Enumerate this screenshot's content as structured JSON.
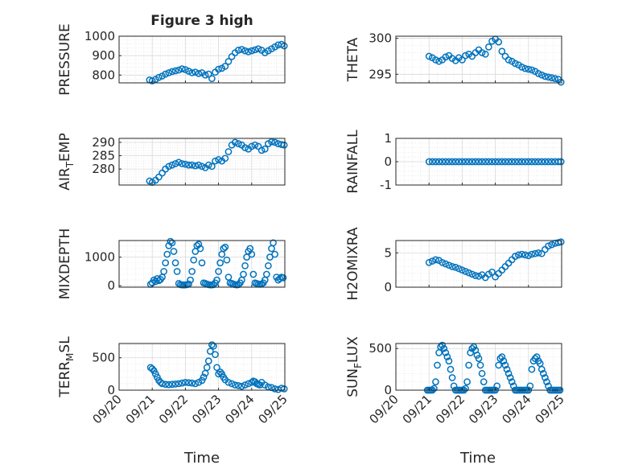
{
  "figure": {
    "title": "Figure 3 high"
  },
  "chart_data": [
    {
      "type": "scatter",
      "ylabel": "PRESSURE",
      "ylim": [
        760,
        1000
      ],
      "yticks": [
        800,
        900,
        1000
      ],
      "xlim": [
        0,
        5
      ],
      "xtick_labels": [
        "09/20",
        "09/21",
        "09/22",
        "09/23",
        "09/24",
        "09/25"
      ],
      "xlabel": "",
      "grid": true,
      "marker_color": "#0072BD",
      "x": [
        0.92,
        1.0,
        1.1,
        1.2,
        1.3,
        1.4,
        1.5,
        1.6,
        1.7,
        1.8,
        1.9,
        2.0,
        2.1,
        2.2,
        2.3,
        2.4,
        2.5,
        2.6,
        2.7,
        2.8,
        2.9,
        3.0,
        3.1,
        3.2,
        3.3,
        3.4,
        3.5,
        3.6,
        3.7,
        3.8,
        3.9,
        4.0,
        4.1,
        4.2,
        4.3,
        4.4,
        4.5,
        4.6,
        4.7,
        4.8,
        4.9,
        4.98
      ],
      "y": [
        775,
        770,
        778,
        788,
        795,
        805,
        812,
        818,
        822,
        826,
        832,
        828,
        820,
        812,
        815,
        808,
        812,
        800,
        805,
        782,
        815,
        830,
        835,
        845,
        870,
        895,
        915,
        928,
        932,
        925,
        920,
        925,
        930,
        935,
        928,
        915,
        925,
        935,
        945,
        955,
        958,
        950
      ]
    },
    {
      "type": "scatter",
      "ylabel": "THETA",
      "ylim": [
        293.8,
        300.3
      ],
      "yticks": [
        295,
        300
      ],
      "xlim": [
        0,
        5
      ],
      "xtick_labels": [
        "09/20",
        "09/21",
        "09/22",
        "09/23",
        "09/24",
        "09/25"
      ],
      "xlabel": "",
      "grid": true,
      "marker_color": "#0072BD",
      "x": [
        1.0,
        1.1,
        1.2,
        1.3,
        1.4,
        1.5,
        1.6,
        1.7,
        1.8,
        1.9,
        2.0,
        2.1,
        2.2,
        2.3,
        2.4,
        2.5,
        2.6,
        2.7,
        2.8,
        2.9,
        3.0,
        3.1,
        3.2,
        3.3,
        3.4,
        3.5,
        3.6,
        3.7,
        3.8,
        3.9,
        4.0,
        4.1,
        4.2,
        4.3,
        4.4,
        4.5,
        4.6,
        4.7,
        4.8,
        4.9,
        4.98
      ],
      "y": [
        297.5,
        297.3,
        297.0,
        296.8,
        297.0,
        297.4,
        297.6,
        297.2,
        296.9,
        297.3,
        297.0,
        297.6,
        297.8,
        297.5,
        298.0,
        298.4,
        298.0,
        297.8,
        298.8,
        299.6,
        299.9,
        299.5,
        298.2,
        297.5,
        297.0,
        296.8,
        296.5,
        296.3,
        296.0,
        295.8,
        295.7,
        295.6,
        295.4,
        295.1,
        294.9,
        294.7,
        294.6,
        294.5,
        294.4,
        294.3,
        293.9
      ]
    },
    {
      "type": "scatter",
      "ylabel": "AIR_TEMP",
      "ylim": [
        274,
        291.5
      ],
      "yticks": [
        280,
        285,
        290
      ],
      "xlim": [
        0,
        5
      ],
      "xtick_labels": [
        "09/20",
        "09/21",
        "09/22",
        "09/23",
        "09/24",
        "09/25"
      ],
      "xlabel": "",
      "grid": true,
      "marker_color": "#0072BD",
      "x": [
        0.92,
        1.0,
        1.1,
        1.2,
        1.3,
        1.4,
        1.5,
        1.6,
        1.7,
        1.8,
        1.9,
        2.0,
        2.1,
        2.2,
        2.3,
        2.4,
        2.5,
        2.6,
        2.7,
        2.8,
        2.9,
        3.0,
        3.1,
        3.2,
        3.3,
        3.4,
        3.5,
        3.6,
        3.7,
        3.8,
        3.9,
        4.0,
        4.1,
        4.2,
        4.3,
        4.4,
        4.5,
        4.6,
        4.7,
        4.8,
        4.9,
        4.98
      ],
      "y": [
        275.5,
        275.0,
        275.8,
        277.0,
        278.5,
        280.0,
        281.0,
        281.5,
        282.0,
        282.5,
        282.0,
        281.8,
        281.5,
        281.5,
        281.2,
        281.5,
        281.0,
        280.5,
        281.5,
        281.0,
        283.0,
        283.5,
        283.0,
        284.0,
        286.5,
        289.0,
        290.0,
        289.5,
        289.0,
        288.0,
        287.5,
        288.5,
        289.0,
        288.5,
        287.0,
        287.5,
        289.5,
        290.2,
        290.0,
        289.5,
        289.2,
        289.0
      ]
    },
    {
      "type": "scatter",
      "ylabel": "RAINFALL",
      "ylim": [
        -1,
        1
      ],
      "yticks": [
        -1,
        0,
        1
      ],
      "xlim": [
        0,
        5
      ],
      "xtick_labels": [
        "09/20",
        "09/21",
        "09/22",
        "09/23",
        "09/24",
        "09/25"
      ],
      "xlabel": "",
      "grid": true,
      "marker_color": "#0072BD",
      "x": [
        1.0,
        1.1,
        1.2,
        1.3,
        1.4,
        1.5,
        1.6,
        1.7,
        1.8,
        1.9,
        2.0,
        2.1,
        2.2,
        2.3,
        2.4,
        2.5,
        2.6,
        2.7,
        2.8,
        2.9,
        3.0,
        3.1,
        3.2,
        3.3,
        3.4,
        3.5,
        3.6,
        3.7,
        3.8,
        3.9,
        4.0,
        4.1,
        4.2,
        4.3,
        4.4,
        4.5,
        4.6,
        4.7,
        4.8,
        4.9,
        4.98
      ],
      "y": [
        0,
        0,
        0,
        0,
        0,
        0,
        0,
        0,
        0,
        0,
        0,
        0,
        0,
        0,
        0,
        0,
        0,
        0,
        0,
        0,
        0,
        0,
        0,
        0,
        0,
        0,
        0,
        0,
        0,
        0,
        0,
        0,
        0,
        0,
        0,
        0,
        0,
        0,
        0,
        0,
        0
      ]
    },
    {
      "type": "scatter",
      "ylabel": "MIXDEPTH",
      "ylim": [
        -50,
        1580
      ],
      "yticks": [
        0,
        1000
      ],
      "xlim": [
        0,
        5
      ],
      "xtick_labels": [
        "09/20",
        "09/21",
        "09/22",
        "09/23",
        "09/24",
        "09/25"
      ],
      "xlabel": "",
      "grid": true,
      "marker_color": "#0072BD",
      "x": [
        0.95,
        1.0,
        1.05,
        1.1,
        1.15,
        1.2,
        1.25,
        1.3,
        1.35,
        1.4,
        1.45,
        1.5,
        1.55,
        1.6,
        1.65,
        1.7,
        1.75,
        1.8,
        1.85,
        1.9,
        1.95,
        2.0,
        2.05,
        2.1,
        2.15,
        2.2,
        2.25,
        2.3,
        2.35,
        2.4,
        2.45,
        2.5,
        2.55,
        2.6,
        2.65,
        2.7,
        2.75,
        2.8,
        2.85,
        2.9,
        2.95,
        3.0,
        3.05,
        3.1,
        3.15,
        3.2,
        3.25,
        3.3,
        3.35,
        3.4,
        3.45,
        3.5,
        3.55,
        3.6,
        3.65,
        3.7,
        3.75,
        3.8,
        3.85,
        3.9,
        3.95,
        4.0,
        4.05,
        4.1,
        4.15,
        4.2,
        4.25,
        4.3,
        4.35,
        4.4,
        4.45,
        4.5,
        4.55,
        4.6,
        4.65,
        4.7,
        4.75,
        4.8,
        4.85,
        4.9,
        4.95
      ],
      "y": [
        50,
        100,
        200,
        150,
        250,
        180,
        220,
        300,
        500,
        800,
        1100,
        1400,
        1550,
        1500,
        1200,
        800,
        500,
        80,
        40,
        30,
        30,
        30,
        40,
        60,
        200,
        500,
        900,
        1200,
        1400,
        1450,
        1300,
        800,
        100,
        80,
        60,
        40,
        30,
        30,
        40,
        100,
        200,
        500,
        800,
        1100,
        1300,
        1350,
        900,
        300,
        100,
        80,
        60,
        40,
        30,
        40,
        100,
        200,
        400,
        700,
        1000,
        1200,
        1300,
        1100,
        400,
        100,
        80,
        60,
        50,
        60,
        100,
        200,
        400,
        700,
        1000,
        1300,
        1500,
        1100,
        300,
        200,
        250,
        300,
        280
      ]
    },
    {
      "type": "scatter",
      "ylabel": "H2OMIXRA",
      "ylim": [
        0,
        6.8
      ],
      "yticks": [
        0,
        5
      ],
      "xlim": [
        0,
        5
      ],
      "xtick_labels": [
        "09/20",
        "09/21",
        "09/22",
        "09/23",
        "09/24",
        "09/25"
      ],
      "xlabel": "",
      "grid": true,
      "marker_color": "#0072BD",
      "x": [
        1.0,
        1.1,
        1.2,
        1.3,
        1.4,
        1.5,
        1.6,
        1.7,
        1.8,
        1.9,
        2.0,
        2.1,
        2.2,
        2.3,
        2.4,
        2.5,
        2.6,
        2.7,
        2.8,
        2.9,
        3.0,
        3.1,
        3.2,
        3.3,
        3.4,
        3.5,
        3.6,
        3.7,
        3.8,
        3.9,
        4.0,
        4.1,
        4.2,
        4.3,
        4.4,
        4.5,
        4.6,
        4.7,
        4.8,
        4.9,
        4.98
      ],
      "y": [
        3.6,
        3.8,
        4.0,
        3.9,
        3.6,
        3.4,
        3.2,
        3.0,
        2.9,
        2.7,
        2.5,
        2.3,
        2.1,
        1.9,
        1.7,
        1.6,
        1.8,
        1.4,
        1.9,
        2.2,
        1.5,
        2.0,
        2.5,
        3.0,
        3.5,
        4.0,
        4.5,
        4.7,
        4.8,
        4.7,
        4.6,
        4.8,
        4.9,
        5.0,
        4.9,
        5.5,
        6.0,
        6.2,
        6.4,
        6.5,
        6.6
      ]
    },
    {
      "type": "scatter",
      "ylabel": "TERR_MSL",
      "ylim": [
        0,
        720
      ],
      "yticks": [
        0,
        500
      ],
      "xlim": [
        0,
        5
      ],
      "xtick_labels": [
        "09/20",
        "09/21",
        "09/22",
        "09/23",
        "09/24",
        "09/25"
      ],
      "xlabel": "",
      "grid": true,
      "marker_color": "#0072BD",
      "x": [
        0.95,
        1.0,
        1.05,
        1.1,
        1.15,
        1.2,
        1.25,
        1.3,
        1.4,
        1.5,
        1.6,
        1.7,
        1.8,
        1.9,
        2.0,
        2.1,
        2.2,
        2.3,
        2.4,
        2.5,
        2.55,
        2.6,
        2.65,
        2.7,
        2.75,
        2.8,
        2.85,
        2.9,
        2.95,
        3.0,
        3.05,
        3.1,
        3.15,
        3.2,
        3.3,
        3.4,
        3.5,
        3.6,
        3.7,
        3.8,
        3.9,
        4.0,
        4.05,
        4.1,
        4.15,
        4.2,
        4.25,
        4.3,
        4.4,
        4.5,
        4.6,
        4.7,
        4.8,
        4.9,
        4.98
      ],
      "y": [
        350,
        330,
        300,
        250,
        200,
        150,
        120,
        100,
        90,
        85,
        90,
        95,
        100,
        110,
        120,
        115,
        110,
        100,
        120,
        150,
        200,
        260,
        350,
        450,
        600,
        700,
        680,
        550,
        350,
        250,
        280,
        250,
        200,
        160,
        120,
        100,
        80,
        70,
        60,
        80,
        100,
        120,
        140,
        130,
        100,
        90,
        80,
        120,
        80,
        50,
        40,
        20,
        10,
        30,
        20
      ]
    },
    {
      "type": "scatter",
      "ylabel": "SUN_FLUX",
      "ylim": [
        0,
        560
      ],
      "yticks": [
        0,
        500
      ],
      "xlim": [
        0,
        5
      ],
      "xtick_labels": [
        "09/20",
        "09/21",
        "09/22",
        "09/23",
        "09/24",
        "09/25"
      ],
      "xlabel": "",
      "grid": true,
      "marker_color": "#0072BD",
      "x": [
        0.95,
        1.0,
        1.05,
        1.1,
        1.15,
        1.2,
        1.25,
        1.3,
        1.35,
        1.4,
        1.45,
        1.5,
        1.55,
        1.6,
        1.65,
        1.7,
        1.75,
        1.8,
        1.85,
        1.9,
        1.95,
        2.0,
        2.05,
        2.1,
        2.15,
        2.2,
        2.25,
        2.3,
        2.35,
        2.4,
        2.45,
        2.5,
        2.55,
        2.6,
        2.65,
        2.7,
        2.75,
        2.8,
        2.85,
        2.9,
        2.95,
        3.0,
        3.05,
        3.1,
        3.15,
        3.2,
        3.25,
        3.3,
        3.35,
        3.4,
        3.45,
        3.5,
        3.55,
        3.6,
        3.65,
        3.7,
        3.75,
        3.8,
        3.85,
        3.9,
        3.95,
        4.0,
        4.05,
        4.1,
        4.15,
        4.2,
        4.25,
        4.3,
        4.35,
        4.4,
        4.45,
        4.5,
        4.55,
        4.6,
        4.65,
        4.7,
        4.75,
        4.8,
        4.85,
        4.9,
        4.95
      ],
      "y": [
        0,
        0,
        0,
        0,
        20,
        100,
        300,
        450,
        520,
        540,
        500,
        450,
        400,
        350,
        250,
        150,
        50,
        0,
        0,
        0,
        0,
        0,
        0,
        20,
        100,
        300,
        450,
        500,
        520,
        480,
        420,
        380,
        300,
        200,
        100,
        0,
        0,
        0,
        0,
        0,
        0,
        0,
        50,
        300,
        380,
        400,
        350,
        300,
        250,
        200,
        150,
        100,
        50,
        0,
        0,
        0,
        0,
        0,
        0,
        0,
        0,
        0,
        50,
        250,
        350,
        380,
        400,
        350,
        320,
        250,
        200,
        150,
        100,
        50,
        0,
        0,
        0,
        0,
        0,
        0,
        0
      ]
    }
  ],
  "xlabel": "Time",
  "ylabel_subscript": {
    "AIR_TEMP": [
      "AIR",
      "T",
      "EMP"
    ],
    "TERR_MSL": [
      "TERR",
      "M",
      "SL"
    ],
    "SUN_FLUX": [
      "SUN",
      "F",
      "LUX"
    ]
  }
}
